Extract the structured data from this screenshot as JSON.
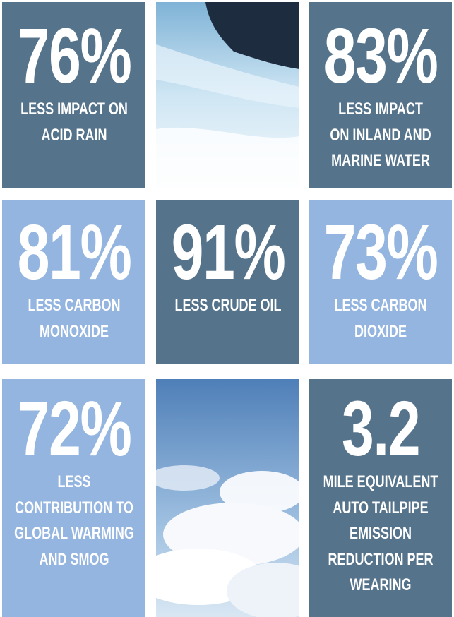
{
  "tiles": [
    {
      "stat": "76%",
      "lines": [
        "LESS IMPACT ON",
        "ACID RAIN"
      ]
    },
    {
      "stat": "83%",
      "lines": [
        "LESS IMPACT",
        "ON INLAND AND",
        "MARINE WATER"
      ]
    },
    {
      "stat": "81%",
      "lines": [
        "LESS CARBON",
        "MONOXIDE"
      ]
    },
    {
      "stat": "91%",
      "lines": [
        "LESS CRUDE OIL"
      ]
    },
    {
      "stat": "73%",
      "lines": [
        "LESS CARBON",
        "DIOXIDE"
      ]
    },
    {
      "stat": "72%",
      "lines": [
        "LESS",
        "CONTRIBUTION TO",
        "GLOBAL WARMING",
        "AND SMOG"
      ]
    },
    {
      "stat": "3.2",
      "lines": [
        "MILE EQUIVALENT",
        "AUTO TAILPIPE",
        "EMISSION",
        "REDUCTION PER",
        "WEARING"
      ]
    }
  ]
}
